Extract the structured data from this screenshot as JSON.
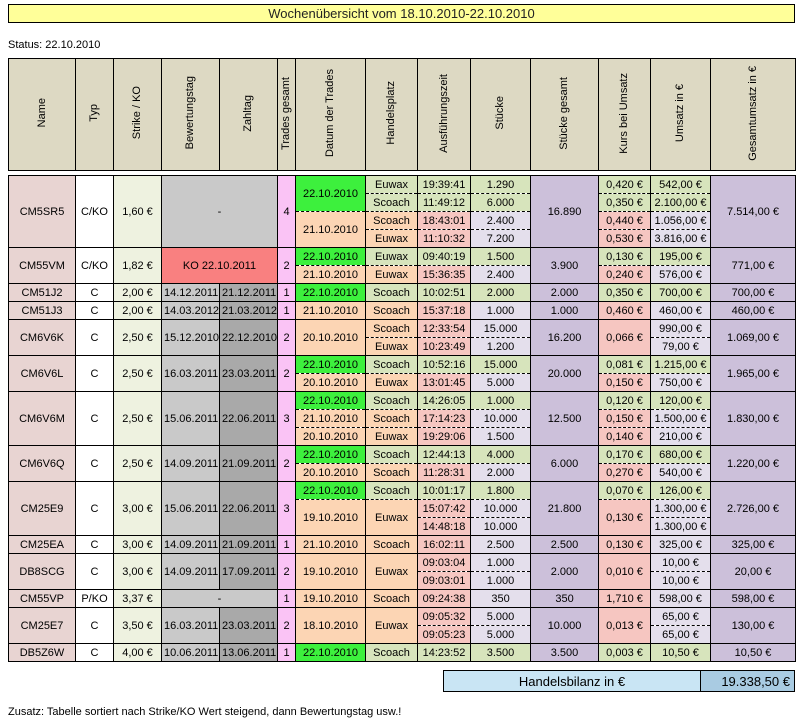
{
  "title": "Wochenübersicht vom 18.10.2010-22.10.2010",
  "status": "Status: 22.10.2010",
  "columns": [
    "Name",
    "Typ",
    "Strike / KO",
    "Bewertungstag",
    "Zahltag",
    "Trades gesamt",
    "Datum der Trades",
    "Handelsplatz",
    "Ausführungszeit",
    "Stücke",
    "Stücke gesamt",
    "Kurs bei Umsatz",
    "Umsatz in €",
    "Gesamtumsatz in €"
  ],
  "rows": [
    {
      "name": "CM5SR5",
      "typ": "C/KO",
      "strike": "1,60 €",
      "merged_bz": "-",
      "ko": false,
      "trades_gesamt": "4",
      "stuecke_gesamt": "16.890",
      "gesamtumsatz": "7.514,00 €",
      "dates": [
        {
          "date": "22.10.2010",
          "current": true,
          "trades": [
            {
              "platz": "Euwax",
              "zeit": "19:39:41",
              "stuecke": "1.290",
              "kurs": "0,420 €",
              "umsatz": "542,00 €"
            },
            {
              "platz": "Scoach",
              "zeit": "11:49:12",
              "stuecke": "6.000",
              "kurs": "0,350 €",
              "umsatz": "2.100,00 €"
            }
          ]
        },
        {
          "date": "21.10.2010",
          "current": false,
          "trades": [
            {
              "platz": "Scoach",
              "zeit": "18:43:01",
              "stuecke": "2.400",
              "kurs": "0,440 €",
              "umsatz": "1.056,00 €"
            },
            {
              "platz": "Euwax",
              "zeit": "11:10:32",
              "stuecke": "7.200",
              "kurs": "0,530 €",
              "umsatz": "3.816,00 €"
            }
          ]
        }
      ]
    },
    {
      "name": "CM55VM",
      "typ": "C/KO",
      "strike": "1,82 €",
      "merged_bz": "KO 22.10.2011",
      "ko": true,
      "trades_gesamt": "2",
      "stuecke_gesamt": "3.900",
      "gesamtumsatz": "771,00 €",
      "dates": [
        {
          "date": "22.10.2010",
          "current": true,
          "trades": [
            {
              "platz": "Euwax",
              "zeit": "09:40:19",
              "stuecke": "1.500",
              "kurs": "0,130 €",
              "umsatz": "195,00 €"
            }
          ]
        },
        {
          "date": "21.10.2010",
          "current": false,
          "trades": [
            {
              "platz": "Euwax",
              "zeit": "15:36:35",
              "stuecke": "2.400",
              "kurs": "0,240 €",
              "umsatz": "576,00 €"
            }
          ]
        }
      ]
    },
    {
      "name": "CM51J2",
      "typ": "C",
      "strike": "2,00 €",
      "bewertungstag": "14.12.2011",
      "zahltag": "21.12.2011",
      "trades_gesamt": "1",
      "stuecke_gesamt": "2.000",
      "gesamtumsatz": "700,00 €",
      "dates": [
        {
          "date": "22.10.2010",
          "current": true,
          "trades": [
            {
              "platz": "Scoach",
              "zeit": "10:02:51",
              "stuecke": "2.000",
              "kurs": "0,350 €",
              "umsatz": "700,00 €"
            }
          ]
        }
      ]
    },
    {
      "name": "CM51J3",
      "typ": "C",
      "strike": "2,00 €",
      "bewertungstag": "14.03.2012",
      "zahltag": "21.03.2012",
      "trades_gesamt": "1",
      "stuecke_gesamt": "1.000",
      "gesamtumsatz": "460,00 €",
      "dates": [
        {
          "date": "21.10.2010",
          "current": false,
          "trades": [
            {
              "platz": "Scoach",
              "zeit": "15:37:18",
              "stuecke": "1.000",
              "kurs": "0,460 €",
              "umsatz": "460,00 €"
            }
          ]
        }
      ]
    },
    {
      "name": "CM6V6K",
      "typ": "C",
      "strike": "2,50 €",
      "bewertungstag": "15.12.2010",
      "zahltag": "22.12.2010",
      "trades_gesamt": "2",
      "stuecke_gesamt": "16.200",
      "gesamtumsatz": "1.069,00 €",
      "dates": [
        {
          "date": "20.10.2010",
          "current": false,
          "merged_kurs": "0,066 €",
          "trades": [
            {
              "platz": "Scoach",
              "zeit": "12:33:54",
              "stuecke": "15.000",
              "umsatz": "990,00 €"
            },
            {
              "platz": "Euwax",
              "zeit": "10:23:49",
              "stuecke": "1.200",
              "umsatz": "79,00 €"
            }
          ]
        }
      ]
    },
    {
      "name": "CM6V6L",
      "typ": "C",
      "strike": "2,50 €",
      "bewertungstag": "16.03.2011",
      "zahltag": "23.03.2011",
      "trades_gesamt": "2",
      "stuecke_gesamt": "20.000",
      "gesamtumsatz": "1.965,00 €",
      "dates": [
        {
          "date": "22.10.2010",
          "current": true,
          "trades": [
            {
              "platz": "Scoach",
              "zeit": "10:52:16",
              "stuecke": "15.000",
              "kurs": "0,081 €",
              "umsatz": "1.215,00 €"
            }
          ]
        },
        {
          "date": "20.10.2010",
          "current": false,
          "trades": [
            {
              "platz": "Euwax",
              "zeit": "13:01:45",
              "stuecke": "5.000",
              "kurs": "0,150 €",
              "umsatz": "750,00 €"
            }
          ]
        }
      ]
    },
    {
      "name": "CM6V6M",
      "typ": "C",
      "strike": "2,50 €",
      "bewertungstag": "15.06.2011",
      "zahltag": "22.06.2011",
      "trades_gesamt": "3",
      "stuecke_gesamt": "12.500",
      "gesamtumsatz": "1.830,00 €",
      "dates": [
        {
          "date": "22.10.2010",
          "current": true,
          "trades": [
            {
              "platz": "Scoach",
              "zeit": "14:26:05",
              "stuecke": "1.000",
              "kurs": "0,120 €",
              "umsatz": "120,00 €"
            }
          ]
        },
        {
          "date": "21.10.2010",
          "current": false,
          "trades": [
            {
              "platz": "Scoach",
              "zeit": "17:14:23",
              "stuecke": "10.000",
              "kurs": "0,150 €",
              "umsatz": "1.500,00 €"
            }
          ]
        },
        {
          "date": "20.10.2010",
          "current": false,
          "trades": [
            {
              "platz": "Euwax",
              "zeit": "19:29:06",
              "stuecke": "1.500",
              "kurs": "0,140 €",
              "umsatz": "210,00 €"
            }
          ]
        }
      ]
    },
    {
      "name": "CM6V6Q",
      "typ": "C",
      "strike": "2,50 €",
      "bewertungstag": "14.09.2011",
      "zahltag": "21.09.2011",
      "trades_gesamt": "2",
      "stuecke_gesamt": "6.000",
      "gesamtumsatz": "1.220,00 €",
      "dates": [
        {
          "date": "22.10.2010",
          "current": true,
          "trades": [
            {
              "platz": "Scoach",
              "zeit": "12:44:13",
              "stuecke": "4.000",
              "kurs": "0,170 €",
              "umsatz": "680,00 €"
            }
          ]
        },
        {
          "date": "20.10.2010",
          "current": false,
          "trades": [
            {
              "platz": "Scoach",
              "zeit": "11:28:31",
              "stuecke": "2.000",
              "kurs": "0,270 €",
              "umsatz": "540,00 €"
            }
          ]
        }
      ]
    },
    {
      "name": "CM25E9",
      "typ": "C",
      "strike": "3,00 €",
      "bewertungstag": "15.06.2011",
      "zahltag": "22.06.2011",
      "trades_gesamt": "3",
      "stuecke_gesamt": "21.800",
      "gesamtumsatz": "2.726,00 €",
      "dates": [
        {
          "date": "22.10.2010",
          "current": true,
          "trades": [
            {
              "platz": "Scoach",
              "zeit": "10:01:17",
              "stuecke": "1.800",
              "kurs": "0,070 €",
              "umsatz": "126,00 €"
            }
          ]
        },
        {
          "date": "19.10.2010",
          "current": false,
          "merged_platz": "Euwax",
          "merged_kurs": "0,130 €",
          "trades": [
            {
              "zeit": "15:07:42",
              "stuecke": "10.000",
              "umsatz": "1.300,00 €"
            },
            {
              "zeit": "14:48:18",
              "stuecke": "10.000",
              "umsatz": "1.300,00 €"
            }
          ]
        }
      ]
    },
    {
      "name": "CM25EA",
      "typ": "C",
      "strike": "3,00 €",
      "bewertungstag": "14.09.2011",
      "zahltag": "21.09.2011",
      "trades_gesamt": "1",
      "stuecke_gesamt": "2.500",
      "gesamtumsatz": "325,00 €",
      "dates": [
        {
          "date": "21.10.2010",
          "current": false,
          "trades": [
            {
              "platz": "Scoach",
              "zeit": "16:02:11",
              "stuecke": "2.500",
              "kurs": "0,130 €",
              "umsatz": "325,00 €"
            }
          ]
        }
      ]
    },
    {
      "name": "DB8SCG",
      "typ": "C",
      "strike": "3,00 €",
      "bewertungstag": "14.09.2011",
      "zahltag": "17.09.2011",
      "trades_gesamt": "2",
      "stuecke_gesamt": "2.000",
      "gesamtumsatz": "20,00 €",
      "dates": [
        {
          "date": "19.10.2010",
          "current": false,
          "merged_platz": "Euwax",
          "merged_kurs": "0,010 €",
          "trades": [
            {
              "zeit": "09:03:04",
              "stuecke": "1.000",
              "umsatz": "10,00 €"
            },
            {
              "zeit": "09:03:01",
              "stuecke": "1.000",
              "umsatz": "10,00 €"
            }
          ]
        }
      ]
    },
    {
      "name": "CM55VP",
      "typ": "P/KO",
      "strike": "3,37 €",
      "merged_bz": "-",
      "ko": false,
      "trades_gesamt": "1",
      "stuecke_gesamt": "350",
      "gesamtumsatz": "598,00 €",
      "dates": [
        {
          "date": "19.10.2010",
          "current": false,
          "trades": [
            {
              "platz": "Scoach",
              "zeit": "09:24:38",
              "stuecke": "350",
              "kurs": "1,710 €",
              "umsatz": "598,00 €"
            }
          ]
        }
      ]
    },
    {
      "name": "CM25E7",
      "typ": "C",
      "strike": "3,50 €",
      "bewertungstag": "16.03.2011",
      "zahltag": "23.03.2011",
      "trades_gesamt": "2",
      "stuecke_gesamt": "10.000",
      "gesamtumsatz": "130,00 €",
      "dates": [
        {
          "date": "18.10.2010",
          "current": false,
          "merged_platz": "Euwax",
          "merged_kurs": "0,013 €",
          "trades": [
            {
              "zeit": "09:05:32",
              "stuecke": "5.000",
              "umsatz": "65,00 €"
            },
            {
              "zeit": "09:05:23",
              "stuecke": "5.000",
              "umsatz": "65,00 €"
            }
          ]
        }
      ]
    },
    {
      "name": "DB5Z6W",
      "typ": "C",
      "strike": "4,00 €",
      "bewertungstag": "10.06.2011",
      "zahltag": "13.06.2011",
      "trades_gesamt": "1",
      "stuecke_gesamt": "3.500",
      "gesamtumsatz": "10,50 €",
      "dates": [
        {
          "date": "22.10.2010",
          "current": true,
          "trades": [
            {
              "platz": "Scoach",
              "zeit": "14:23:52",
              "stuecke": "3.500",
              "kurs": "0,003 €",
              "umsatz": "10,50 €"
            }
          ]
        }
      ]
    }
  ],
  "bilanz": {
    "label": "Handelsbilanz in €",
    "value": "19.338,50 €"
  },
  "footer": "Zusatz: Tabelle sortiert nach Strike/KO Wert steigend, dann Bewertungstag usw.!",
  "colors": {
    "title_bg": "#ffff99",
    "header_bg": "#ddd9c3",
    "name_bg": "#e8d4d2",
    "strike_bg": "#eef2e0",
    "bewertungstag_bg": "#c9c9c9",
    "zahltag_bg": "#a9a9a9",
    "trades_bg": "#fac3f5",
    "date_current_bg": "#3df03d",
    "date_other_bg": "#fcd5b4",
    "trade_green_bg": "#d7e4bc",
    "trade_pink_bg": "#f6c6c1",
    "trade_lavender_bg": "#e4dfec",
    "totals_bg": "#ccc0da",
    "ko_bg": "#f98080",
    "bilanz_label_bg": "#c9e5f4",
    "bilanz_value_bg": "#a9cbe2"
  }
}
